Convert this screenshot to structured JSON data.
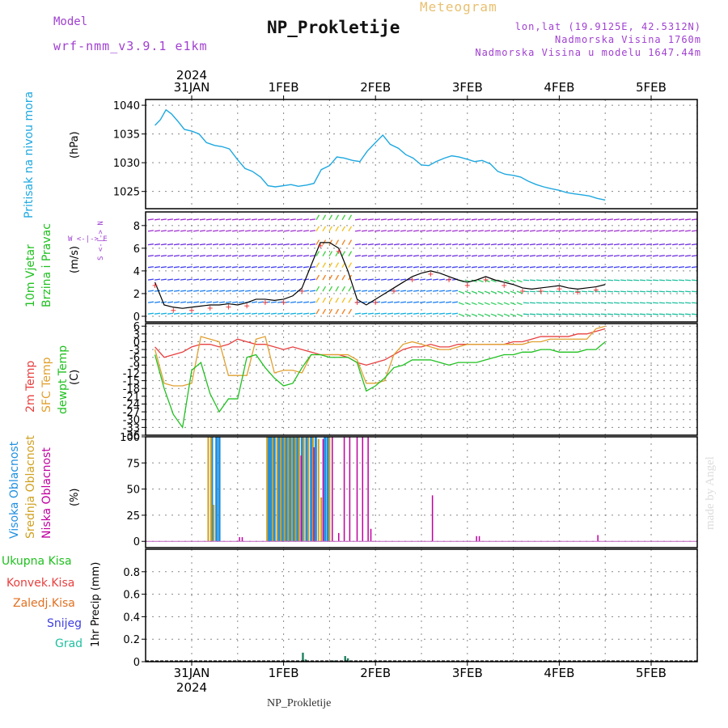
{
  "header": {
    "model_label": "Model",
    "model_name": "wrf-nmm_v3.9.1 e1km",
    "meteogram_label": "Meteogram",
    "station_title": "NP_Prokletije",
    "lonlat": "lon,lat (19.9125E, 42.5312N)",
    "altitude": "Nadmorska Visina 1760m",
    "altitude_model": "Nadmorska Visina u modelu 1647.44m",
    "footer_title": "NP_Prokletije",
    "credit": "made by Angel"
  },
  "colors": {
    "pressure": "#1ea8e0",
    "temp2m": "#e84040",
    "sfctemp": "#e0a030",
    "dewpoint": "#20c020",
    "cloud_high": "#2090e0",
    "cloud_mid": "#d0a020",
    "cloud_low": "#c000a0",
    "wind_speed_line": "#000000",
    "precip": "#208060",
    "purple": "#a040d0",
    "grid": "#888888"
  },
  "chart_data": [
    {
      "type": "line",
      "id": "pressure",
      "ylabel_left": "Pritisak na nivou mora",
      "unit": "(hPa)",
      "ylim": [
        1022,
        1041
      ],
      "yticks": [
        1025,
        1030,
        1035,
        1040
      ],
      "x_day_start": 0.6,
      "x": [
        0.6,
        0.66,
        0.72,
        0.78,
        0.85,
        0.92,
        1.0,
        1.08,
        1.16,
        1.25,
        1.33,
        1.41,
        1.5,
        1.58,
        1.66,
        1.75,
        1.83,
        1.91,
        2.0,
        2.08,
        2.16,
        2.25,
        2.33,
        2.41,
        2.5,
        2.58,
        2.66,
        2.75,
        2.83,
        2.91,
        3.0,
        3.08,
        3.16,
        3.25,
        3.33,
        3.41,
        3.5,
        3.58,
        3.66,
        3.75,
        3.83,
        3.91,
        4.0,
        4.08,
        4.16,
        4.25,
        4.33,
        4.41,
        4.5,
        4.58,
        4.66,
        4.75,
        4.83,
        4.91,
        5.0,
        5.08,
        5.16,
        5.25,
        5.33,
        5.41,
        5.5
      ],
      "values": [
        1036.5,
        1037.5,
        1039.2,
        1038.5,
        1037.2,
        1035.8,
        1035.5,
        1035.0,
        1033.5,
        1033.0,
        1032.8,
        1032.4,
        1030.5,
        1029.0,
        1028.5,
        1027.5,
        1026.0,
        1025.8,
        1026.0,
        1026.2,
        1025.9,
        1026.1,
        1026.4,
        1028.8,
        1029.5,
        1031.0,
        1030.8,
        1030.4,
        1030.2,
        1032.0,
        1033.5,
        1034.8,
        1033.2,
        1032.5,
        1031.4,
        1030.8,
        1029.6,
        1029.5,
        1030.2,
        1030.8,
        1031.2,
        1031.0,
        1030.6,
        1030.2,
        1030.4,
        1029.8,
        1028.5,
        1028.0,
        1027.8,
        1027.5,
        1026.8,
        1026.2,
        1025.8,
        1025.5,
        1025.2,
        1024.8,
        1024.6,
        1024.4,
        1024.2,
        1023.8,
        1023.5
      ]
    },
    {
      "type": "line",
      "id": "wind",
      "ylabel_left": "10m Vjetar",
      "ylabel_left2": "Brzina i Pravac",
      "unit": "(m/s)",
      "direction_legend": "W <-|-> E",
      "direction_legend2": "S <-|-> N",
      "ylim": [
        -0.5,
        9.2
      ],
      "yticks": [
        0,
        2,
        4,
        6,
        8
      ],
      "x": [
        0.6,
        0.7,
        0.8,
        0.9,
        1.0,
        1.1,
        1.2,
        1.3,
        1.4,
        1.5,
        1.6,
        1.7,
        1.8,
        1.9,
        2.0,
        2.1,
        2.2,
        2.3,
        2.4,
        2.5,
        2.6,
        2.7,
        2.8,
        2.9,
        3.0,
        3.1,
        3.2,
        3.3,
        3.4,
        3.5,
        3.6,
        3.7,
        3.8,
        3.9,
        4.0,
        4.1,
        4.2,
        4.3,
        4.4,
        4.5,
        4.6,
        4.7,
        4.8,
        4.9,
        5.0,
        5.1,
        5.2,
        5.3,
        5.4,
        5.5
      ],
      "values": [
        3.0,
        1.0,
        0.8,
        0.7,
        0.8,
        0.9,
        1.0,
        1.0,
        1.1,
        1.0,
        1.2,
        1.5,
        1.5,
        1.4,
        1.5,
        1.8,
        2.5,
        4.5,
        6.5,
        6.5,
        6.0,
        4.0,
        1.5,
        1.0,
        1.5,
        2.0,
        2.5,
        3.0,
        3.5,
        3.8,
        4.0,
        3.8,
        3.5,
        3.2,
        3.0,
        3.2,
        3.5,
        3.2,
        3.0,
        2.8,
        2.5,
        2.4,
        2.5,
        2.6,
        2.7,
        2.5,
        2.4,
        2.5,
        2.6,
        2.8
      ]
    },
    {
      "type": "line",
      "id": "temperature",
      "ylabel_left": "2m Temp",
      "ylabel_left2": "SFC Temp",
      "ylabel_left3": "dewpt Temp",
      "unit": "(C)",
      "ylim": [
        -36,
        7
      ],
      "yticks": [
        6,
        3,
        0,
        -3,
        -6,
        -9,
        -12,
        -15,
        -18,
        -21,
        -24,
        -27,
        -30,
        -33,
        -36
      ],
      "x": [
        0.6,
        0.7,
        0.8,
        0.9,
        1.0,
        1.1,
        1.2,
        1.3,
        1.4,
        1.5,
        1.6,
        1.7,
        1.8,
        1.9,
        2.0,
        2.1,
        2.2,
        2.3,
        2.4,
        2.5,
        2.6,
        2.7,
        2.8,
        2.9,
        3.0,
        3.1,
        3.2,
        3.3,
        3.4,
        3.5,
        3.6,
        3.7,
        3.8,
        3.9,
        4.0,
        4.1,
        4.2,
        4.3,
        4.4,
        4.5,
        4.6,
        4.7,
        4.8,
        4.9,
        5.0,
        5.1,
        5.2,
        5.3,
        5.4,
        5.5
      ],
      "series": [
        {
          "name": "2m Temp",
          "values": [
            -2,
            -6,
            -5,
            -4,
            -2,
            -1,
            -1,
            -2,
            -1,
            1,
            0,
            -1,
            -1,
            -2,
            -3,
            -2,
            -3,
            -4,
            -5,
            -5,
            -5,
            -6,
            -8,
            -9,
            -8,
            -7,
            -5,
            -3,
            -2,
            -2,
            -1,
            -2,
            -2,
            -1,
            -1,
            -1,
            -1,
            -1,
            -1,
            0,
            0,
            1,
            2,
            2,
            2,
            2,
            3,
            3,
            4,
            5
          ]
        },
        {
          "name": "SFC Temp",
          "values": [
            -3,
            -16,
            -17,
            -17,
            -16,
            2,
            1,
            0,
            -13,
            -13,
            -13,
            1,
            2,
            -12,
            -11,
            -11,
            -12,
            -5,
            -5,
            -5,
            -5,
            -5,
            -7,
            -16,
            -16,
            -15,
            -5,
            -1,
            0,
            -1,
            -2,
            -3,
            -3,
            -2,
            -1,
            -1,
            -1,
            -1,
            -1,
            -1,
            -1,
            0,
            0,
            1,
            1,
            1,
            1,
            1,
            5,
            6
          ]
        },
        {
          "name": "dewpt Temp",
          "values": [
            -5,
            -18,
            -28,
            -33,
            -11,
            -8,
            -20,
            -27,
            -22,
            -22,
            -6,
            -5,
            -10,
            -14,
            -17,
            -16,
            -10,
            -5,
            -5,
            -6,
            -6,
            -6,
            -8,
            -19,
            -17,
            -14,
            -10,
            -9,
            -7,
            -7,
            -7,
            -8,
            -9,
            -8,
            -8,
            -8,
            -7,
            -6,
            -5,
            -5,
            -4,
            -4,
            -3,
            -3,
            -4,
            -4,
            -4,
            -3,
            -3,
            0
          ]
        }
      ]
    },
    {
      "type": "bar",
      "id": "clouds",
      "ylabel_left": "Visoka Oblacnost",
      "ylabel_left2": "Srednja Oblacnost",
      "ylabel_left3": "Niska Oblacnost",
      "unit": "(%)",
      "ylim": [
        -6,
        100
      ],
      "yticks": [
        0,
        25,
        50,
        75,
        100
      ],
      "series": [
        {
          "name": "Visoka Oblacnost",
          "x": [
            1.22,
            1.27,
            1.3,
            1.84,
            1.86,
            1.9,
            1.95,
            1.99,
            2.03,
            2.07,
            2.11,
            2.15,
            2.2,
            2.25,
            2.3,
            2.35,
            2.45,
            2.48
          ],
          "values": [
            100,
            100,
            100,
            100,
            100,
            100,
            100,
            100,
            100,
            100,
            100,
            100,
            100,
            100,
            100,
            100,
            100,
            100
          ]
        },
        {
          "name": "Srednja Oblacnost",
          "x": [
            1.18,
            1.21,
            1.24,
            1.82,
            1.88,
            1.93,
            1.97,
            2.01,
            2.05,
            2.09,
            2.13,
            2.17,
            2.22,
            2.27,
            2.32,
            2.38,
            2.41,
            2.5
          ],
          "values": [
            100,
            100,
            35,
            100,
            100,
            100,
            100,
            100,
            100,
            100,
            100,
            100,
            100,
            100,
            100,
            98,
            42,
            100
          ]
        },
        {
          "name": "Niska Oblacnost",
          "x": [
            1.52,
            1.55,
            2.19,
            2.33,
            2.43,
            2.53,
            2.6,
            2.66,
            2.72,
            2.8,
            2.86,
            2.92,
            2.95,
            3.62,
            4.1,
            4.13,
            5.42
          ],
          "values": [
            4,
            4,
            82,
            90,
            98,
            100,
            8,
            100,
            100,
            100,
            100,
            100,
            12,
            44,
            5,
            5,
            6
          ]
        }
      ]
    },
    {
      "type": "bar",
      "id": "precip",
      "ylabel": "1hr Precip (mm)",
      "legend": [
        "Ukupna Kisa",
        "Konvek.Kisa",
        "Zaledj.Kisa",
        "Snijeg",
        "Grad"
      ],
      "ylim": [
        0,
        1.0
      ],
      "yticks": [
        0,
        0.2,
        0.4,
        0.6,
        0.8
      ],
      "x": [
        2.21,
        2.24,
        2.55,
        2.67,
        2.7,
        2.73
      ],
      "values": [
        0.08,
        0.02,
        0.01,
        0.05,
        0.03,
        0.01
      ]
    }
  ],
  "xaxis": {
    "top_year": "2024",
    "bottom_year": "2024",
    "day_labels": [
      "31JAN",
      "1FEB",
      "2FEB",
      "3FEB",
      "4FEB",
      "5FEB"
    ],
    "day_positions": [
      1,
      2,
      3,
      4,
      5,
      6
    ],
    "x_range": [
      0.6,
      6.5
    ]
  }
}
